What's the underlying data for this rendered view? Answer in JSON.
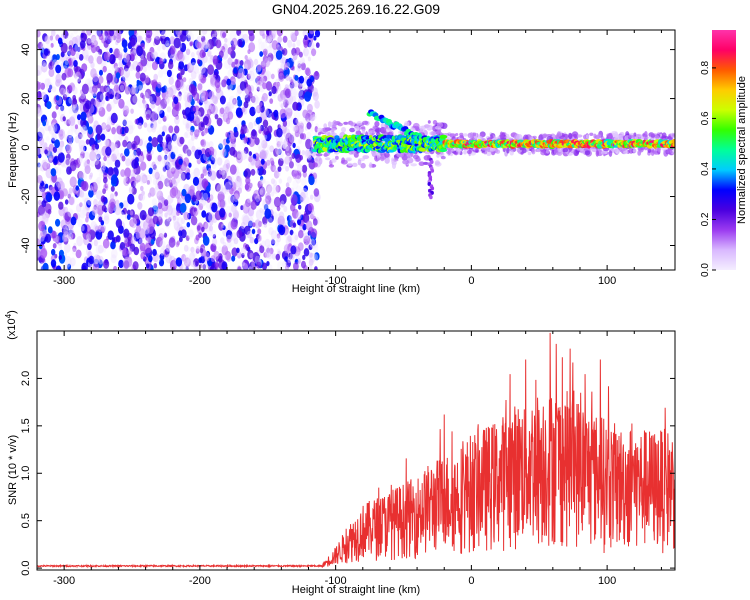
{
  "title": "GN04.2025.269.16.22.G09",
  "chart_data": [
    {
      "type": "heatmap",
      "title": "GN04.2025.269.16.22.G09",
      "xlabel": "Height of straight line (km)",
      "ylabel": "Frequency (Hz)",
      "xlim": [
        -320,
        150
      ],
      "ylim": [
        -50,
        48
      ],
      "xticks": [
        -300,
        -200,
        -100,
        0,
        100
      ],
      "xtick_labels": [
        "-300",
        "-200",
        "-100",
        "0",
        "100"
      ],
      "yticks": [
        -40,
        -20,
        0,
        20,
        40
      ],
      "ytick_labels": [
        "-40",
        "-20",
        "0",
        "20",
        "40"
      ],
      "colorbar": {
        "label": "Normalized spectral amplitude",
        "range": [
          0,
          0.95
        ],
        "ticks": [
          0.0,
          0.2,
          0.4,
          0.6,
          0.8
        ],
        "tick_labels": [
          "0.0",
          "0.2",
          "0.4",
          "0.6",
          "0.8"
        ],
        "colors": [
          "#f4eeff",
          "#d9b8ff",
          "#9b3bf0",
          "#4a00e0",
          "#0000ff",
          "#00ccff",
          "#00ff99",
          "#33ff00",
          "#ccff00",
          "#ffcc00",
          "#ff5a00",
          "#ff0066",
          "#ff33aa"
        ]
      },
      "regions": [
        {
          "name": "noise",
          "x": [
            -320,
            -113
          ],
          "y": [
            -50,
            48
          ],
          "amplitude": [
            0.0,
            0.35
          ]
        },
        {
          "name": "signal",
          "x": [
            -115,
            150
          ],
          "frequency": 1.5,
          "amplitude": [
            0.3,
            0.9
          ]
        }
      ]
    },
    {
      "type": "line",
      "xlabel": "Height of straight line (km)",
      "ylabel": "SNR (10 * v/v)",
      "y_multiplier": "(x10",
      "y_multiplier_exp": "4",
      "y_multiplier_close": ")",
      "xlim": [
        -320,
        150
      ],
      "ylim": [
        -0.02,
        2.5
      ],
      "xticks": [
        -300,
        -200,
        -100,
        0,
        100
      ],
      "xtick_labels": [
        "-300",
        "-200",
        "-100",
        "0",
        "100"
      ],
      "yticks": [
        0.0,
        0.5,
        1.0,
        1.5,
        2.0
      ],
      "ytick_labels": [
        "0.0",
        "0.5",
        "1.0",
        "1.5",
        "2.0"
      ],
      "series": [
        {
          "name": "SNR",
          "color": "#e83030",
          "envelope": {
            "x": [
              -320,
              -110,
              -100,
              -90,
              -80,
              -70,
              -60,
              -50,
              -40,
              -30,
              -20,
              -10,
              0,
              10,
              20,
              30,
              40,
              50,
              60,
              70,
              80,
              90,
              100,
              110,
              120,
              130,
              140,
              150
            ],
            "y": [
              0.03,
              0.03,
              0.15,
              0.32,
              0.45,
              0.5,
              0.55,
              0.6,
              0.65,
              0.75,
              0.8,
              0.85,
              0.95,
              1.0,
              1.05,
              1.15,
              1.2,
              1.25,
              1.28,
              1.25,
              1.2,
              1.1,
              1.05,
              1.0,
              1.0,
              0.98,
              0.98,
              0.98
            ]
          },
          "peaks": [
            {
              "x": 58,
              "y": 2.48
            },
            {
              "x": 40,
              "y": 2.2
            },
            {
              "x": -20,
              "y": 1.62
            },
            {
              "x": 95,
              "y": 2.2
            }
          ]
        }
      ]
    }
  ]
}
